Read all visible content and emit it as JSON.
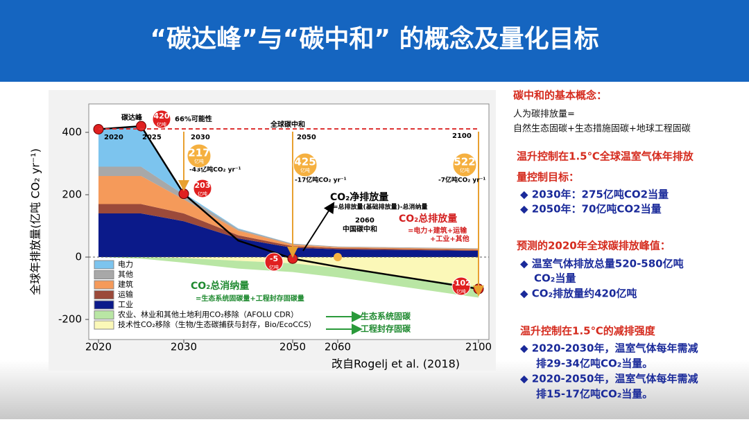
{
  "header": {
    "title": "“碳达峰”与“碳中和” 的概念及量化目标"
  },
  "chart_data": {
    "type": "area",
    "ylabel": "全球年排放量(亿吨 CO₂ yr⁻¹)",
    "x": [
      2020,
      2025,
      2030,
      2040,
      2050,
      2060,
      2100
    ],
    "series": [
      {
        "name": "电力",
        "color": "#7cc4ee",
        "values": [
          120,
          130,
          5,
          2,
          0,
          0,
          0
        ]
      },
      {
        "name": "其他",
        "color": "#a8a8a8",
        "values": [
          30,
          30,
          15,
          5,
          3,
          2,
          2
        ]
      },
      {
        "name": "建筑",
        "color": "#f59a5a",
        "values": [
          90,
          90,
          45,
          15,
          5,
          3,
          3
        ]
      },
      {
        "name": "运输",
        "color": "#9b4a3a",
        "values": [
          30,
          30,
          25,
          10,
          5,
          4,
          3
        ]
      },
      {
        "name": "工业",
        "color": "#0b1a8a",
        "values": [
          140,
          140,
          115,
          60,
          30,
          25,
          20
        ]
      },
      {
        "name": "农业、林业和其他土地利用CO₂移除（AFOLU CDR）",
        "color": "#b9e6a4",
        "values": [
          0,
          -5,
          -15,
          -25,
          -28,
          -30,
          -35
        ]
      },
      {
        "name": "技术性CO₂移除（生物/生态碳捕获与封存，Bio/EcoCCS）",
        "color": "#fbf8b8",
        "values": [
          0,
          0,
          -3,
          -12,
          -20,
          -35,
          -95
        ]
      }
    ],
    "net_line": {
      "name": "CO₂净排放量",
      "color": "#000000",
      "values": [
        410,
        420,
        203,
        53,
        -5,
        -31,
        -102
      ]
    },
    "xlim": [
      2020,
      2100
    ],
    "xticks": [
      2020,
      2030,
      2050,
      2060,
      2100
    ],
    "ylim": [
      -265,
      490
    ],
    "yticks": [
      -200,
      0,
      200,
      400
    ],
    "bubbles": [
      {
        "text": "420",
        "unit": "亿吨"
      },
      {
        "text": "217",
        "unit": "亿吨"
      },
      {
        "text": "203",
        "unit": "亿吨"
      },
      {
        "text": "425",
        "unit": "亿吨"
      },
      {
        "text": "-5",
        "unit": "亿吨"
      },
      {
        "text": "522",
        "unit": "亿吨"
      },
      {
        "text": "-102",
        "unit": "亿吨"
      }
    ],
    "annotations": [
      "碳达峰",
      "66%可能性",
      "全球碳中和",
      "2020",
      "2025",
      "2030",
      "2050",
      "2100",
      "-43亿吨CO₂ yr⁻¹",
      "-17亿吨CO₂ yr⁻¹",
      "-7亿吨CO₂ yr⁻¹",
      "=总排放量(基础排放量)-总消纳量",
      "2060",
      "中国碳中和",
      "CO₂总排放量",
      "=电力+建筑+运输",
      "+工业+其他",
      "CO₂总消纳量",
      "=生态系统固碳量+工程封存固碳量",
      "生态系统固碳",
      "工程封存固碳",
      "改自Rogelj et al. (2018)"
    ]
  },
  "sidebar": {
    "lines": [
      "碳中和的基本概念：",
      "人为碳排放量=",
      "自然生态固碳+生态措施固碳+地球工程固碳",
      "温升控制在1.5℃全球温室气体年排放",
      "量控制目标：",
      "◆ 2030年：275亿吨CO2当量",
      "◆ 2050年：70亿吨CO2当量",
      "预测的2020年全球碳排放峰值：",
      "◆ 温室气体排放总量520-580亿吨",
      "CO₂当量",
      "◆ CO₂排放量约420亿吨",
      "温升控制在1.5℃的减排强度",
      "◆ 2020-2030年，温室气体每年需减",
      "排29-34亿吨CO₂当量。",
      "◆ 2020-2050年，温室气体每年需减",
      "排15-17亿吨CO₂当量。"
    ]
  },
  "footer": {
    "lines": [
      "CO₂净排放量=总排放量-总消纳量",
      "CO₂总排放量（基础排放量）=电力+建筑+运输+运输+工业+其他",
      "CO₂总消纳量=生态系统固碳量+工程封存固碳量"
    ]
  }
}
